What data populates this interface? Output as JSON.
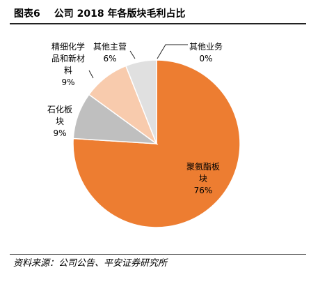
{
  "header": {
    "fig_num": "图表6",
    "title": "公司 2018 年各版块毛利占比"
  },
  "source": "资料来源：公司公告、平安证券研究所",
  "colors": {
    "polyurethane": "#ed7d31",
    "petrochemical": "#bfbfbf",
    "fine_chemical": "#f8cbad",
    "other_main": "#e0e0e0",
    "other_business": "#ffffff",
    "leader_line": "#222222",
    "slice_border": "#ffffff"
  },
  "chart_data": {
    "type": "pie",
    "title": "",
    "legend": "none",
    "slices": [
      {
        "label_lines": [
          "其他业务"
        ],
        "label": "其他业务",
        "value_label": "0%",
        "value": 0
      },
      {
        "label_lines": [
          "聚氨酯板",
          "块"
        ],
        "label": "聚氨酯板块",
        "value_label": "76%",
        "value": 76
      },
      {
        "label_lines": [
          "石化板",
          "块"
        ],
        "label": "石化板块",
        "value_label": "9%",
        "value": 9
      },
      {
        "label_lines": [
          "精细化学",
          "品和新材",
          "料"
        ],
        "label": "精细化学品和新材料",
        "value_label": "9%",
        "value": 9
      },
      {
        "label_lines": [
          "其他主营"
        ],
        "label": "其他主营",
        "value_label": "6%",
        "value": 6
      }
    ]
  }
}
